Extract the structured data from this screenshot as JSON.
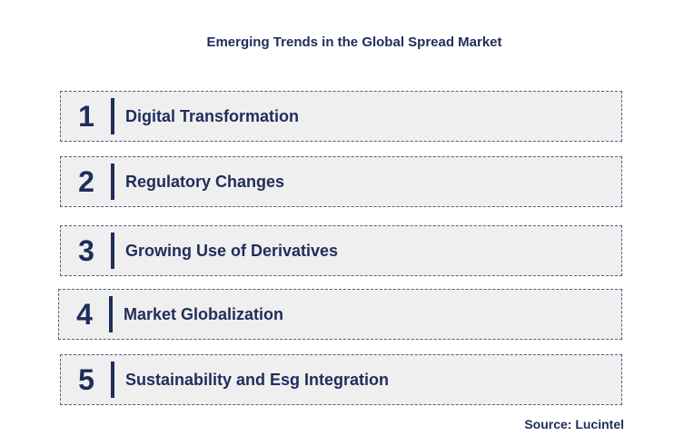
{
  "title": "Emerging Trends in the Global Spread Market",
  "trends": [
    {
      "number": "1",
      "label": "Digital Transformation"
    },
    {
      "number": "2",
      "label": "Regulatory Changes"
    },
    {
      "number": "3",
      "label": "Growing Use of Derivatives"
    },
    {
      "number": "4",
      "label": "Market Globalization"
    },
    {
      "number": "5",
      "label": "Sustainability and Esg Integration"
    }
  ],
  "source": "Source: Lucintel",
  "colors": {
    "text": "#1f2d5a",
    "box_fill": "#efefef",
    "box_border": "#4b5f86"
  }
}
